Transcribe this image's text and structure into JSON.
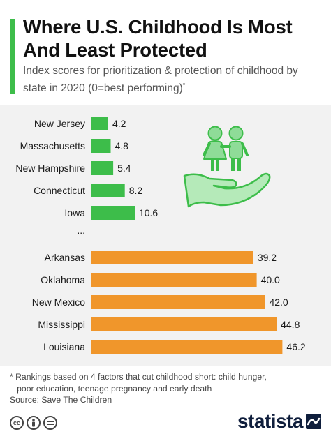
{
  "header": {
    "title": "Where U.S. Childhood Is Most And Least Protected",
    "subtitle": "Index scores for prioritization & protection of childhood by state in 2020 (0=best performing)",
    "subtitle_mark": "*"
  },
  "chart_data": {
    "type": "bar",
    "orientation": "horizontal",
    "categories": [
      "New Jersey",
      "Massachusetts",
      "New Hampshire",
      "Connecticut",
      "Iowa",
      "...",
      "Arkansas",
      "Oklahoma",
      "New Mexico",
      "Mississippi",
      "Louisiana"
    ],
    "values": [
      4.2,
      4.8,
      5.4,
      8.2,
      10.6,
      null,
      39.2,
      40.0,
      42.0,
      44.8,
      46.2
    ],
    "value_labels": [
      "4.2",
      "4.8",
      "5.4",
      "8.2",
      "10.6",
      "",
      "39.2",
      "40.0",
      "42.0",
      "44.8",
      "46.2"
    ],
    "groups": {
      "most_protected": {
        "color": "#3dbd4a",
        "indices": [
          0,
          1,
          2,
          3,
          4
        ]
      },
      "least_protected": {
        "color": "#f0962b",
        "indices": [
          6,
          7,
          8,
          9,
          10
        ]
      }
    },
    "gap_label": "...",
    "xlim": [
      0,
      50
    ],
    "grid": false,
    "legend": "none"
  },
  "illustration": {
    "icon": "children-in-hand-icon",
    "color": "#8fdc98"
  },
  "footer": {
    "note_line1": "* Rankings based on 4 factors that cut childhood short: child hunger,",
    "note_line2": "   poor education, teenage pregnancy and early death",
    "source": "Source: Save The Children",
    "license_icons": [
      "cc",
      "by",
      "nd"
    ],
    "brand": "statista"
  }
}
